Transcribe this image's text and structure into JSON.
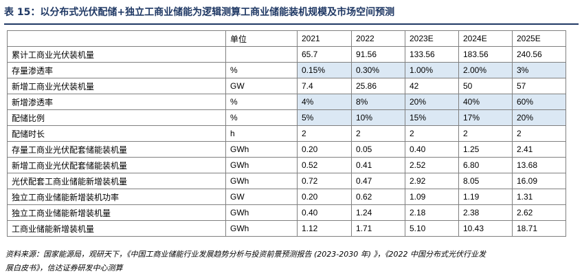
{
  "title": "表 15：以分布式光伏配储+独立工商业储能为逻辑测算工商业储能装机规模及市场空间预测",
  "table": {
    "header": {
      "unit": "单位",
      "years": [
        "2021",
        "2022",
        "2023E",
        "2024E",
        "2025E"
      ]
    },
    "rows": [
      {
        "label": "累计工商业光伏装机量",
        "unit": "",
        "values": [
          "65.7",
          "91.56",
          "133.56",
          "183.56",
          "240.56"
        ],
        "shaded": false
      },
      {
        "label": "存量渗透率",
        "unit": "%",
        "values": [
          "0.15%",
          "0.30%",
          "1.00%",
          "2.00%",
          "3%"
        ],
        "shaded": true
      },
      {
        "label": "新增工商业光伏装机量",
        "unit": "GW",
        "values": [
          "7.4",
          "25.86",
          "42",
          "50",
          "57"
        ],
        "shaded": false
      },
      {
        "label": "新增渗透率",
        "unit": "%",
        "values": [
          "4%",
          "8%",
          "20%",
          "40%",
          "60%"
        ],
        "shaded": true
      },
      {
        "label": "配储比例",
        "unit": "%",
        "values": [
          "5%",
          "10%",
          "15%",
          "17%",
          "20%"
        ],
        "shaded": true
      },
      {
        "label": "配储时长",
        "unit": "h",
        "values": [
          "2",
          "2",
          "2",
          "2",
          "2"
        ],
        "shaded": false
      },
      {
        "label": "存量工商业光伏配套储能装机量",
        "unit": "GWh",
        "values": [
          "0.20",
          "0.05",
          "0.40",
          "1.25",
          "2.41"
        ],
        "shaded": false
      },
      {
        "label": "新增工商业光伏配套储能装机量",
        "unit": "GWh",
        "values": [
          "0.52",
          "0.41",
          "2.52",
          "6.80",
          "13.68"
        ],
        "shaded": false
      },
      {
        "label": "光伏配套工商业储能新增装机量",
        "unit": "GWh",
        "values": [
          "0.72",
          "0.47",
          "2.92",
          "8.05",
          "16.09"
        ],
        "shaded": false
      },
      {
        "label": "独立工商业储能新增装机功率",
        "unit": "GW",
        "values": [
          "0.20",
          "0.62",
          "1.09",
          "1.19",
          "1.31"
        ],
        "shaded": false
      },
      {
        "label": "独立工商业储能新增装机量",
        "unit": "GWh",
        "values": [
          "0.40",
          "1.24",
          "2.18",
          "2.38",
          "2.62"
        ],
        "shaded": false
      },
      {
        "label": "工商业储能新增装机量",
        "unit": "GWh",
        "values": [
          "1.12",
          "1.71",
          "5.10",
          "10.43",
          "18.71"
        ],
        "shaded": false
      }
    ]
  },
  "footer": {
    "line1": "资料来源：国家能源局，观研天下，《中国工商业储能行业发展趋势分析与投资前景预测报告 (2023-2030 年) 》，《2022 中国分布式光伏行业发",
    "line2": "展白皮书》，信达证券研发中心测算"
  },
  "colors": {
    "title": "#1f3864",
    "shade": "#dbe8f4",
    "border": "#7f7f7f"
  }
}
